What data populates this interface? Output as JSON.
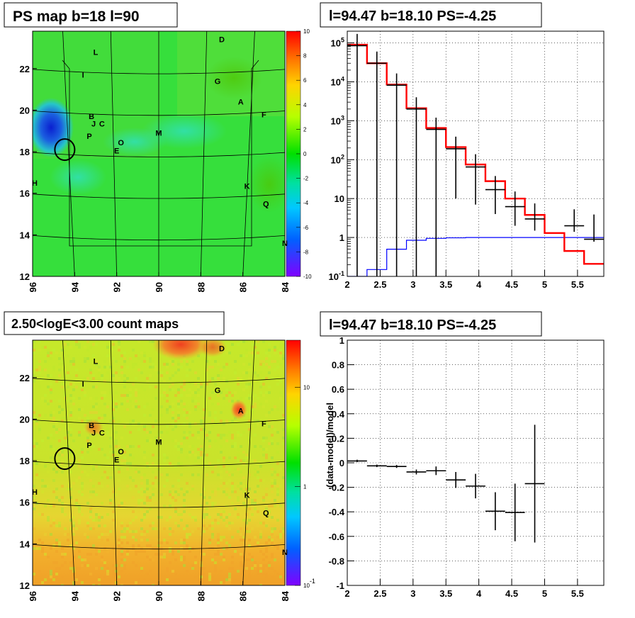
{
  "chart_data": [
    {
      "type": "heatmap",
      "title": "PS map b=18 l=90",
      "x_ticks": [
        "96",
        "94",
        "92",
        "90",
        "88",
        "86",
        "84"
      ],
      "y_ticks": [
        "12",
        "14",
        "16",
        "18",
        "20",
        "22"
      ],
      "xlim": [
        96,
        84
      ],
      "ylim": [
        12,
        23.8
      ],
      "colorbar": {
        "ticks": [
          "10",
          "8",
          "6",
          "4",
          "2",
          "0",
          "-2",
          "-4",
          "-6",
          "-8",
          "-10"
        ],
        "range": [
          -10,
          10
        ],
        "scale": "linear"
      },
      "sources": [
        {
          "name": "D",
          "l": 87.0,
          "b": 23.4
        },
        {
          "name": "L",
          "l": 93.0,
          "b": 22.8
        },
        {
          "name": "I",
          "l": 93.6,
          "b": 21.7
        },
        {
          "name": "G",
          "l": 87.2,
          "b": 21.4
        },
        {
          "name": "A",
          "l": 86.1,
          "b": 20.4
        },
        {
          "name": "F",
          "l": 85.0,
          "b": 19.8
        },
        {
          "name": "B",
          "l": 93.2,
          "b": 19.7
        },
        {
          "name": "J",
          "l": 93.1,
          "b": 19.35
        },
        {
          "name": "C",
          "l": 92.7,
          "b": 19.35
        },
        {
          "name": "P",
          "l": 93.3,
          "b": 18.75
        },
        {
          "name": "O",
          "l": 91.8,
          "b": 18.45
        },
        {
          "name": "M",
          "l": 90.0,
          "b": 18.9
        },
        {
          "name": "E",
          "l": 92.0,
          "b": 18.05
        },
        {
          "name": "H",
          "l": 95.9,
          "b": 16.5
        },
        {
          "name": "K",
          "l": 85.8,
          "b": 16.35
        },
        {
          "name": "Q",
          "l": 84.9,
          "b": 15.5
        },
        {
          "name": "N",
          "l": 84.0,
          "b": 13.6
        }
      ],
      "circle": {
        "l": 94.47,
        "b": 18.1
      }
    },
    {
      "type": "line",
      "title": "l=94.47 b=18.10 PS=-4.25",
      "x_ticks": [
        "2",
        "2.5",
        "3",
        "3.5",
        "4",
        "4.5",
        "5",
        "5.5"
      ],
      "y_ticks": [
        "10^-1",
        "1",
        "10",
        "10^2",
        "10^3",
        "10^4",
        "10^5"
      ],
      "xlim": [
        2,
        5.9
      ],
      "ylim": [
        0.1,
        200000
      ],
      "yscale": "log",
      "grid": true,
      "x_edges": [
        2.0,
        2.3,
        2.6,
        2.9,
        3.2,
        3.5,
        3.8,
        4.1,
        4.4,
        4.7,
        5.0,
        5.3,
        5.6,
        5.9
      ],
      "series": [
        {
          "name": "",
          "color": "#ff0000",
          "values": [
            90000,
            30000,
            8500,
            2100,
            650,
            210,
            75,
            28,
            10,
            3.8,
            1.3,
            0.45,
            0.21
          ]
        },
        {
          "name": "",
          "color": "#0000ff",
          "values": [
            0.1,
            0.15,
            0.5,
            0.85,
            0.95,
            0.98,
            1.0,
            1.0,
            1.0,
            1.0,
            1.0,
            1.0,
            1.0
          ]
        }
      ],
      "data_points": [
        {
          "x": 2.15,
          "y": 85000,
          "yerr_lo": 85000,
          "yerr_hi": 85000
        },
        {
          "x": 2.45,
          "y": 30000,
          "yerr_lo": 30000,
          "yerr_hi": 30000
        },
        {
          "x": 2.75,
          "y": 8200,
          "yerr_lo": 8200,
          "yerr_hi": 8200
        },
        {
          "x": 3.05,
          "y": 2000,
          "yerr_lo": 2000,
          "yerr_hi": 2000
        },
        {
          "x": 3.35,
          "y": 600,
          "yerr_lo": 600,
          "yerr_hi": 600
        },
        {
          "x": 3.65,
          "y": 190,
          "yerr_lo": 180,
          "yerr_hi": 200
        },
        {
          "x": 3.95,
          "y": 65,
          "yerr_lo": 58,
          "yerr_hi": 73
        },
        {
          "x": 4.25,
          "y": 17,
          "yerr_lo": 13,
          "yerr_hi": 21
        },
        {
          "x": 4.55,
          "y": 6.2,
          "yerr_lo": 4.2,
          "yerr_hi": 9
        },
        {
          "x": 4.85,
          "y": 3.0,
          "yerr_lo": 1.5,
          "yerr_hi": 4.5
        },
        {
          "x": 5.45,
          "y": 2.0,
          "yerr_lo": 0.6,
          "yerr_hi": 3.3
        },
        {
          "x": 5.75,
          "y": 0.9,
          "yerr_lo": 0.12,
          "yerr_hi": 3.0
        }
      ]
    },
    {
      "type": "heatmap",
      "title": "2.50<logE<3.00 count maps",
      "x_ticks": [
        "96",
        "94",
        "92",
        "90",
        "88",
        "86",
        "84"
      ],
      "y_ticks": [
        "12",
        "14",
        "16",
        "18",
        "20",
        "22"
      ],
      "xlim": [
        96,
        84
      ],
      "ylim": [
        12,
        23.8
      ],
      "colorbar": {
        "ticks": [
          "10",
          "1",
          "10^-1"
        ],
        "range": [
          0.1,
          30
        ],
        "scale": "log"
      },
      "sources": [
        {
          "name": "D",
          "l": 87.0,
          "b": 23.4
        },
        {
          "name": "L",
          "l": 93.0,
          "b": 22.8
        },
        {
          "name": "I",
          "l": 93.6,
          "b": 21.7
        },
        {
          "name": "G",
          "l": 87.2,
          "b": 21.4
        },
        {
          "name": "A",
          "l": 86.1,
          "b": 20.4
        },
        {
          "name": "F",
          "l": 85.0,
          "b": 19.8
        },
        {
          "name": "B",
          "l": 93.2,
          "b": 19.7
        },
        {
          "name": "J",
          "l": 93.1,
          "b": 19.35
        },
        {
          "name": "C",
          "l": 92.7,
          "b": 19.35
        },
        {
          "name": "P",
          "l": 93.3,
          "b": 18.75
        },
        {
          "name": "O",
          "l": 91.8,
          "b": 18.45
        },
        {
          "name": "M",
          "l": 90.0,
          "b": 18.9
        },
        {
          "name": "E",
          "l": 92.0,
          "b": 18.05
        },
        {
          "name": "H",
          "l": 95.9,
          "b": 16.5
        },
        {
          "name": "K",
          "l": 85.8,
          "b": 16.35
        },
        {
          "name": "Q",
          "l": 84.9,
          "b": 15.5
        },
        {
          "name": "N",
          "l": 84.0,
          "b": 13.6
        }
      ],
      "circle": {
        "l": 94.47,
        "b": 18.1
      }
    },
    {
      "type": "scatter",
      "title": "l=94.47 b=18.10 PS=-4.25",
      "ylabel": "(data-model)/model",
      "x_ticks": [
        "2",
        "2.5",
        "3",
        "3.5",
        "4",
        "4.5",
        "5",
        "5.5"
      ],
      "y_ticks": [
        "-1",
        "-0.8",
        "-0.6",
        "-0.4",
        "-0.2",
        "0",
        "0.2",
        "0.4",
        "0.6",
        "0.8",
        "1"
      ],
      "xlim": [
        2,
        5.9
      ],
      "ylim": [
        -1,
        1
      ],
      "grid": true,
      "points": [
        {
          "x": 2.15,
          "y": 0.015,
          "err": 0.01,
          "xerr": 0.15
        },
        {
          "x": 2.45,
          "y": -0.025,
          "err": 0.01,
          "xerr": 0.15
        },
        {
          "x": 2.75,
          "y": -0.03,
          "err": 0.012,
          "xerr": 0.15
        },
        {
          "x": 3.05,
          "y": -0.075,
          "err": 0.02,
          "xerr": 0.15
        },
        {
          "x": 3.35,
          "y": -0.065,
          "err": 0.035,
          "xerr": 0.15
        },
        {
          "x": 3.65,
          "y": -0.14,
          "err": 0.065,
          "xerr": 0.15
        },
        {
          "x": 3.95,
          "y": -0.19,
          "err": 0.1,
          "xerr": 0.15
        },
        {
          "x": 4.25,
          "y": -0.395,
          "err": 0.155,
          "xerr": 0.15
        },
        {
          "x": 4.55,
          "y": -0.405,
          "err": 0.235,
          "xerr": 0.15
        },
        {
          "x": 4.85,
          "y": -0.17,
          "err": 0.48,
          "xerr": 0.15
        }
      ]
    }
  ]
}
